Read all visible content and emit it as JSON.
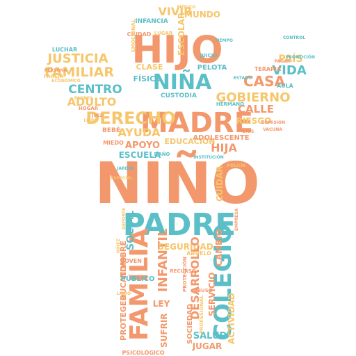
{
  "palette": {
    "orange": "#f3986c",
    "teal": "#5bbfc8",
    "yellow": "#f6c66b",
    "background": "#ffffff"
  },
  "shape": "child-with-raised-arms-silhouette",
  "words": [
    {
      "text": "NIÑO",
      "color": "orange"
    },
    {
      "text": "PADRE",
      "color": "teal"
    },
    {
      "text": "MADRE",
      "color": "orange"
    },
    {
      "text": "HIJO",
      "color": "orange"
    },
    {
      "text": "NIÑA",
      "color": "teal"
    },
    {
      "text": "FAMILIA",
      "color": "orange"
    },
    {
      "text": "COLEGIO",
      "color": "teal"
    },
    {
      "text": "DERECHO",
      "color": "yellow"
    },
    {
      "text": "JUSTICIA",
      "color": "yellow"
    },
    {
      "text": "FAMILIAR",
      "color": "yellow"
    },
    {
      "text": "CENTRO",
      "color": "teal"
    },
    {
      "text": "ADULTO",
      "color": "yellow"
    },
    {
      "text": "GOBIERNO",
      "color": "yellow"
    },
    {
      "text": "CASA",
      "color": "orange"
    },
    {
      "text": "VIDA",
      "color": "teal"
    },
    {
      "text": "PAÍS",
      "color": "yellow"
    },
    {
      "text": "CALLE",
      "color": "orange"
    },
    {
      "text": "RIESGO",
      "color": "yellow"
    },
    {
      "text": "AYUDA",
      "color": "yellow"
    },
    {
      "text": "APOYO",
      "color": "orange"
    },
    {
      "text": "ESCUELA",
      "color": "teal"
    },
    {
      "text": "EDUCACIÓN",
      "color": "yellow"
    },
    {
      "text": "ADOLESCENTE",
      "color": "orange"
    },
    {
      "text": "HIJA",
      "color": "orange"
    },
    {
      "text": "CUIDAR",
      "color": "yellow"
    },
    {
      "text": "SOCIAL",
      "color": "teal"
    },
    {
      "text": "INFANTIL",
      "color": "orange"
    },
    {
      "text": "SEGURIDAD",
      "color": "yellow"
    },
    {
      "text": "DESARROLLO",
      "color": "orange"
    },
    {
      "text": "CAMBIO",
      "color": "orange"
    },
    {
      "text": "SERVICIO",
      "color": "orange"
    },
    {
      "text": "SALUD",
      "color": "teal"
    },
    {
      "text": "JUGAR",
      "color": "orange"
    },
    {
      "text": "ACTIVIDAD",
      "color": "yellow"
    },
    {
      "text": "SUFRIR",
      "color": "orange"
    },
    {
      "text": "LEY",
      "color": "orange"
    },
    {
      "text": "PROTEGER",
      "color": "orange"
    },
    {
      "text": "EDUCATIVO",
      "color": "orange"
    },
    {
      "text": "NOMBRE",
      "color": "orange"
    },
    {
      "text": "PÚBLICO",
      "color": "teal"
    },
    {
      "text": "SOCIEDAD",
      "color": "orange"
    },
    {
      "text": "PSICOLÓGICO",
      "color": "orange"
    },
    {
      "text": "VIVIR",
      "color": "yellow"
    },
    {
      "text": "MUNDO",
      "color": "yellow"
    },
    {
      "text": "ESCOLAR",
      "color": "yellow"
    },
    {
      "text": "INFANCIA",
      "color": "teal"
    },
    {
      "text": "CLASE",
      "color": "yellow"
    },
    {
      "text": "FÍSICO",
      "color": "teal"
    },
    {
      "text": "CUSTODIA",
      "color": "teal"
    },
    {
      "text": "PELOTA",
      "color": "teal"
    },
    {
      "text": "LUCHAR",
      "color": "teal"
    },
    {
      "text": "BEBÉ",
      "color": "orange"
    },
    {
      "text": "HOGAR",
      "color": "orange"
    },
    {
      "text": "MIEDO",
      "color": "orange"
    },
    {
      "text": "TERAPIA",
      "color": "orange"
    },
    {
      "text": "AULA",
      "color": "teal"
    },
    {
      "text": "HERMANO",
      "color": "teal"
    },
    {
      "text": "JUICIO",
      "color": "teal"
    },
    {
      "text": "ABUELO",
      "color": "yellow"
    },
    {
      "text": "JOVEN",
      "color": "orange"
    },
    {
      "text": "PROFESIONAL",
      "color": "yellow"
    },
    {
      "text": "PAREJA",
      "color": "yellow"
    },
    {
      "text": "PERSONA",
      "color": "orange"
    },
    {
      "text": "CIUDAD",
      "color": "orange"
    },
    {
      "text": "RECURSO",
      "color": "orange"
    },
    {
      "text": "ABUSO",
      "color": "orange"
    },
    {
      "text": "PROMOCIÓN",
      "color": "teal"
    },
    {
      "text": "PROTECCIÓN",
      "color": "orange"
    },
    {
      "text": "EMOCIONAL",
      "color": "yellow"
    },
    {
      "text": "PADRES",
      "color": "yellow"
    },
    {
      "text": "JUEZ",
      "color": "orange"
    },
    {
      "text": "COMISIÓN",
      "color": "orange"
    },
    {
      "text": "VACUNA",
      "color": "orange"
    },
    {
      "text": "JARDÍN",
      "color": "teal"
    },
    {
      "text": "POLICÍA",
      "color": "yellow"
    },
    {
      "text": "EMPRESA",
      "color": "orange"
    },
    {
      "text": "ECONÓMICO",
      "color": "yellow"
    },
    {
      "text": "LIBRE",
      "color": "yellow"
    },
    {
      "text": "DAÑO",
      "color": "teal"
    },
    {
      "text": "LUGAR",
      "color": "yellow"
    },
    {
      "text": "ESPECIAL",
      "color": "yellow"
    },
    {
      "text": "INSTITUCIÓN",
      "color": "teal"
    },
    {
      "text": "PAGAR",
      "color": "orange"
    },
    {
      "text": "CONTROL",
      "color": "teal"
    },
    {
      "text": "TIEMPO",
      "color": "teal"
    },
    {
      "text": "DIOS",
      "color": "orange"
    },
    {
      "text": "DEPORTE",
      "color": "yellow"
    },
    {
      "text": "LIBRO",
      "color": "yellow"
    },
    {
      "text": "MÉDICO",
      "color": "yellow"
    },
    {
      "text": "NIÑEZ",
      "color": "yellow"
    },
    {
      "text": "ESTADO",
      "color": "teal"
    }
  ]
}
